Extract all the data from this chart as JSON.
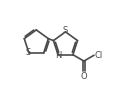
{
  "bg_color": "#ffffff",
  "line_color": "#4a4a4a",
  "line_width": 1.2,
  "figure_width": 1.31,
  "figure_height": 0.89,
  "dpi": 100,
  "xlim": [
    0.0,
    1.0
  ],
  "ylim": [
    0.05,
    0.95
  ]
}
